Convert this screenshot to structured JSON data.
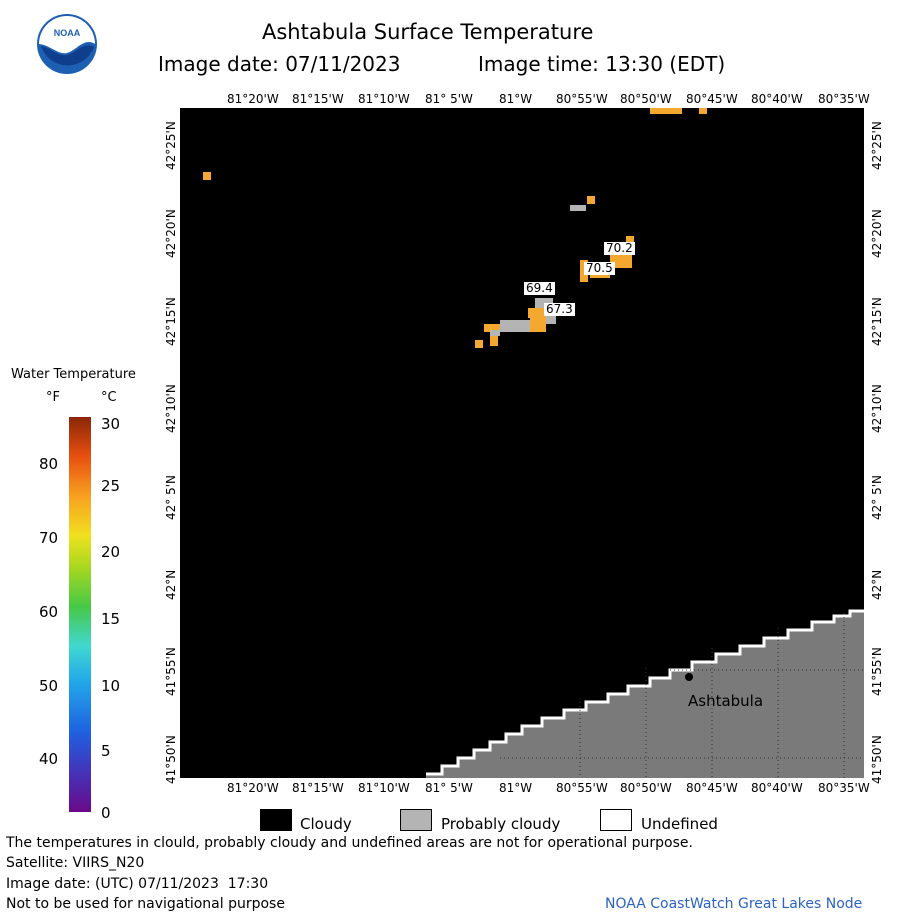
{
  "header": {
    "title": "Ashtabula Surface Temperature",
    "subtitle_date": "Image date: 07/11/2023",
    "subtitle_time": "Image time: 13:30 (EDT)"
  },
  "logo": {
    "text": "NOAA"
  },
  "lon_ticks": [
    "81°20'W",
    "81°15'W",
    "81°10'W",
    "81° 5'W",
    "81°W",
    "80°55'W",
    "80°50'W",
    "80°45'W",
    "80°40'W",
    "80°35'W"
  ],
  "lat_ticks": [
    "42°25'N",
    "42°20'N",
    "42°15'N",
    "42°10'N",
    "42° 5'N",
    "42°N",
    "41°55'N",
    "41°50'N"
  ],
  "colorbar": {
    "title": "Water Temperature",
    "unit_f": "°F",
    "unit_c": "°C",
    "f_ticks": [
      "80",
      "70",
      "60",
      "50",
      "40"
    ],
    "c_ticks": [
      "30",
      "25",
      "20",
      "15",
      "10",
      "5",
      "0"
    ]
  },
  "map": {
    "place_label": "Ashtabula",
    "temp_labels": [
      "70.2",
      "70.5",
      "69.4",
      "67.3"
    ]
  },
  "legend": {
    "cloudy": "Cloudy",
    "probably_cloudy": "Probably cloudy",
    "undefined": "Undefined"
  },
  "footer": {
    "disclaimer": "The temperatures in clould, probably cloudy and undefined areas are not for operational purpose.",
    "satellite": "Satellite: VIIRS_N20",
    "utc_date": "Image date: (UTC) 07/11/2023  17:30",
    "nav_warning": "Not to be used for navigational purpose",
    "credit": "NOAA CoastWatch Great Lakes Node"
  },
  "colors": {
    "cloud": "#000000",
    "probably_cloudy": "#b4b4b4",
    "land": "#7a7a7a",
    "warm_water": "#f4a830"
  }
}
